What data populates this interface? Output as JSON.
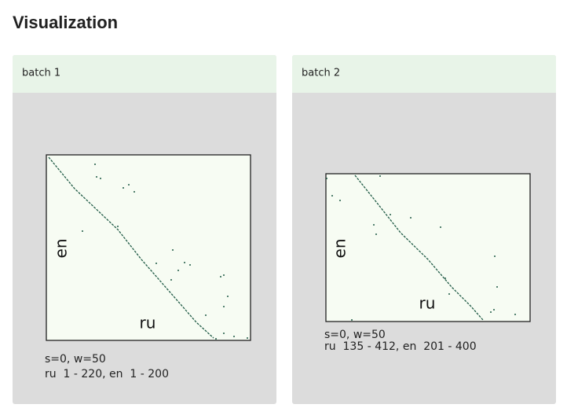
{
  "header": {
    "title": "Visualization"
  },
  "panels": [
    {
      "title": "batch 1",
      "y_label": "en",
      "x_label": "ru",
      "params": "s=0, w=50",
      "range": "ru  1 - 220, en  1 - 200"
    },
    {
      "title": "batch 2",
      "y_label": "en",
      "x_label": "ru",
      "params": "s=0, w=50",
      "range": "ru  135 - 412, en  201 - 400"
    }
  ]
}
